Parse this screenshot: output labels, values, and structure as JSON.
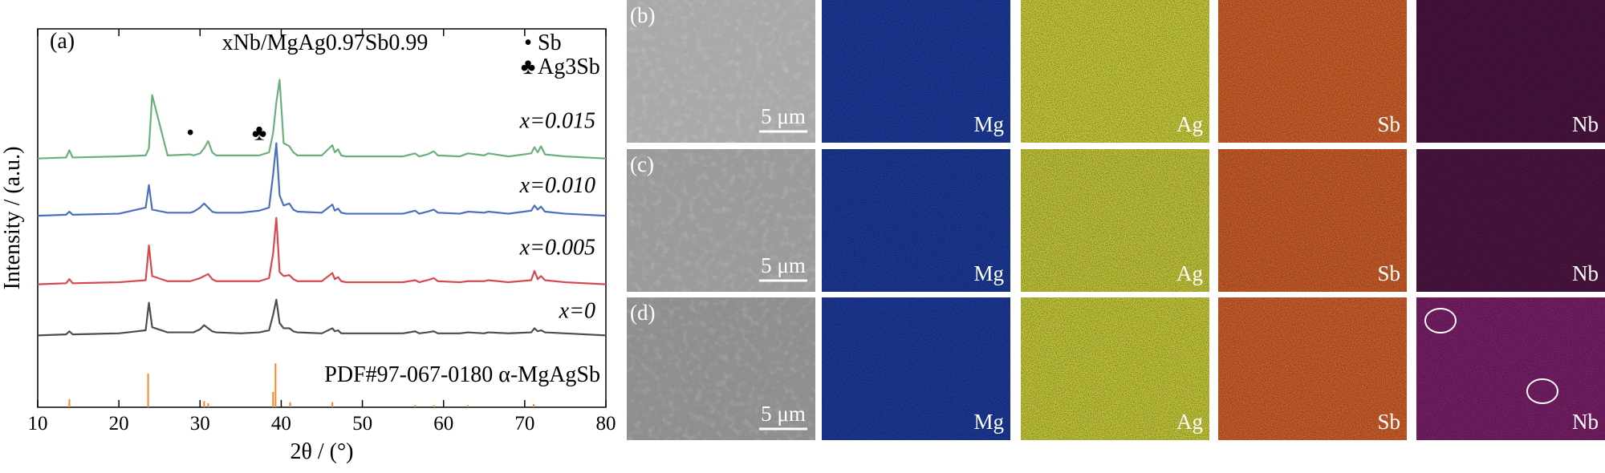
{
  "chart_data": {
    "type": "line",
    "panel_label": "(a)",
    "title": "xNb/MgAg0.97Sb0.99",
    "x_label": "2θ / (°)",
    "y_label": "Intensity / (a.u.)",
    "xlim": [
      10,
      80
    ],
    "xticks": [
      10,
      20,
      30,
      40,
      50,
      60,
      70,
      80
    ],
    "x": [
      10,
      13.5,
      13.9,
      14.3,
      20,
      23.3,
      23.7,
      24.1,
      26,
      28.8,
      29.2,
      30,
      30.5,
      31,
      31.5,
      32,
      35,
      37.3,
      38.5,
      39.0,
      39.4,
      39.8,
      40.3,
      41,
      41.5,
      42,
      45,
      46.3,
      46.6,
      47,
      47.4,
      48,
      55,
      56.5,
      57,
      58,
      58.8,
      59.3,
      62,
      63,
      65,
      65.5,
      68,
      70.8,
      71.2,
      71.6,
      72,
      72.5,
      75,
      80
    ],
    "series": [
      {
        "name": "x=0.015",
        "color": "#6aaf7c",
        "values": [
          0,
          1,
          8,
          1,
          2,
          3,
          10,
          62,
          3,
          4,
          3,
          5,
          10,
          17,
          6,
          3,
          3,
          3,
          6,
          25,
          55,
          77,
          15,
          12,
          6,
          3,
          3,
          13,
          6,
          9,
          3,
          2,
          2,
          5,
          2,
          4,
          7,
          3,
          2,
          5,
          3,
          5,
          2,
          5,
          11,
          6,
          12,
          4,
          2,
          0
        ]
      },
      {
        "name": "x=0.010",
        "color": "#4a6fc0",
        "values": [
          0,
          1,
          4,
          1,
          2,
          8,
          30,
          6,
          3,
          3,
          4,
          8,
          12,
          8,
          4,
          3,
          3,
          5,
          8,
          40,
          71,
          20,
          10,
          12,
          6,
          4,
          3,
          11,
          5,
          7,
          3,
          2,
          2,
          5,
          2,
          4,
          6,
          3,
          2,
          4,
          3,
          4,
          2,
          5,
          10,
          6,
          9,
          4,
          2,
          0
        ]
      },
      {
        "name": "x=0.005",
        "color": "#d9474e",
        "values": [
          0,
          1,
          5,
          1,
          2,
          4,
          38,
          8,
          3,
          3,
          4,
          6,
          8,
          10,
          5,
          3,
          3,
          3,
          6,
          30,
          65,
          12,
          8,
          9,
          5,
          3,
          3,
          11,
          5,
          7,
          3,
          2,
          2,
          4,
          2,
          4,
          6,
          3,
          2,
          3,
          3,
          4,
          2,
          4,
          13,
          5,
          8,
          4,
          2,
          0
        ]
      },
      {
        "name": "x=0",
        "color": "#4d4d4d",
        "values": [
          0,
          1,
          4,
          1,
          2,
          5,
          32,
          8,
          3,
          3,
          3,
          6,
          10,
          7,
          4,
          3,
          2,
          3,
          5,
          20,
          35,
          12,
          7,
          7,
          4,
          3,
          2,
          7,
          4,
          5,
          2,
          2,
          2,
          4,
          2,
          3,
          4,
          2,
          2,
          3,
          2,
          3,
          2,
          3,
          7,
          4,
          5,
          3,
          2,
          0
        ]
      }
    ],
    "reference": {
      "name": "PDF#97-067-0180 α-MgAgSb",
      "color": "#f0882a",
      "x": [
        13.9,
        23.6,
        30.5,
        31.0,
        39.0,
        39.3,
        41.1,
        46.3,
        56.5,
        58.8,
        63.0,
        71.1
      ],
      "values": [
        8,
        33,
        6,
        4,
        15,
        43,
        5,
        5,
        2,
        2,
        2,
        3
      ]
    },
    "phase_markers": [
      {
        "symbol": "•",
        "name": "Sb",
        "x": 28.8
      },
      {
        "symbol": "♣",
        "name": "Ag3Sb",
        "x": 37.3
      }
    ]
  },
  "maps": {
    "rows": [
      {
        "label": "(b)"
      },
      {
        "label": "(c)"
      },
      {
        "label": "(d)"
      }
    ],
    "elements": [
      "Mg",
      "Ag",
      "Sb",
      "Nb"
    ],
    "scale_bar": "5 μm"
  }
}
